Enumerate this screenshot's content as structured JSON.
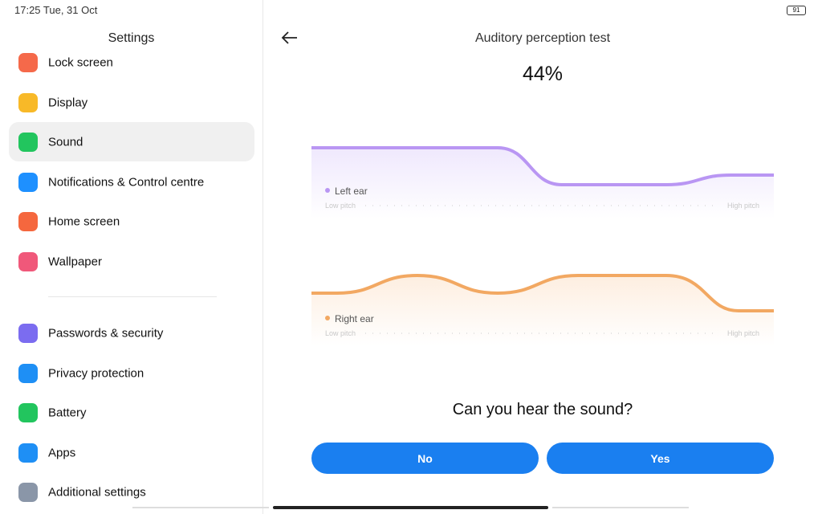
{
  "status_bar": {
    "time": "17:25 Tue, 31 Oct",
    "battery": "91"
  },
  "sidebar": {
    "title": "Settings",
    "items": [
      "Lock screen",
      "Display",
      "Sound",
      "Notifications & Control centre",
      "Home screen",
      "Wallpaper",
      "Passwords & security",
      "Privacy protection",
      "Battery",
      "Apps",
      "Additional settings"
    ]
  },
  "main": {
    "title": "Auditory perception test",
    "progress": "44%",
    "left_ear": {
      "label": "Left ear",
      "low": "Low pitch",
      "high": "High pitch"
    },
    "right_ear": {
      "label": "Right ear",
      "low": "Low pitch",
      "high": "High pitch"
    },
    "question": "Can you hear the sound?",
    "buttons": [
      "No",
      "Yes"
    ]
  }
}
